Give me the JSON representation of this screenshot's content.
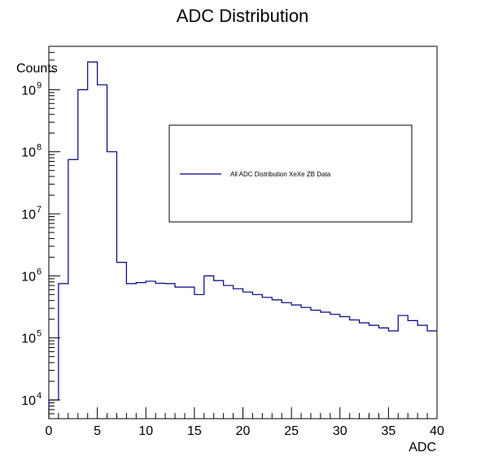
{
  "chart_data": {
    "type": "line",
    "style": "histogram-step",
    "title": "ADC Distribution",
    "xlabel": "ADC",
    "ylabel": "Counts",
    "xlim": [
      0,
      40
    ],
    "ylim": [
      5000,
      5000000000
    ],
    "yscale": "log",
    "grid": false,
    "x_ticks": [
      "0",
      "5",
      "10",
      "15",
      "20",
      "25",
      "30",
      "35",
      "40"
    ],
    "y_ticks": [
      {
        "base": "10",
        "exp": "4"
      },
      {
        "base": "10",
        "exp": "5"
      },
      {
        "base": "10",
        "exp": "6"
      },
      {
        "base": "10",
        "exp": "7"
      },
      {
        "base": "10",
        "exp": "8"
      },
      {
        "base": "10",
        "exp": "9"
      }
    ],
    "bin_edges": [
      0,
      1,
      2,
      3,
      4,
      5,
      6,
      7,
      8,
      9,
      10,
      11,
      12,
      13,
      14,
      15,
      16,
      17,
      18,
      19,
      20,
      21,
      22,
      23,
      24,
      25,
      26,
      27,
      28,
      29,
      30,
      31,
      32,
      33,
      34,
      35,
      36,
      37,
      38,
      39,
      40
    ],
    "series": [
      {
        "name": "All ADC Distribution XeXe ZB Data",
        "color": "#000080",
        "values": [
          10000,
          750000,
          75000000,
          1000000000,
          2800000000,
          1200000000,
          100000000,
          1650000,
          750000,
          780000,
          820000,
          760000,
          750000,
          660000,
          660000,
          500000,
          1000000,
          840000,
          700000,
          620000,
          550000,
          500000,
          450000,
          410000,
          370000,
          340000,
          310000,
          280000,
          260000,
          240000,
          220000,
          195000,
          175000,
          160000,
          145000,
          130000,
          230000,
          190000,
          160000,
          130000
        ]
      }
    ],
    "legend": {
      "placement": "top-right",
      "entries": [
        "All ADC Distribution XeXe ZB Data"
      ]
    }
  }
}
